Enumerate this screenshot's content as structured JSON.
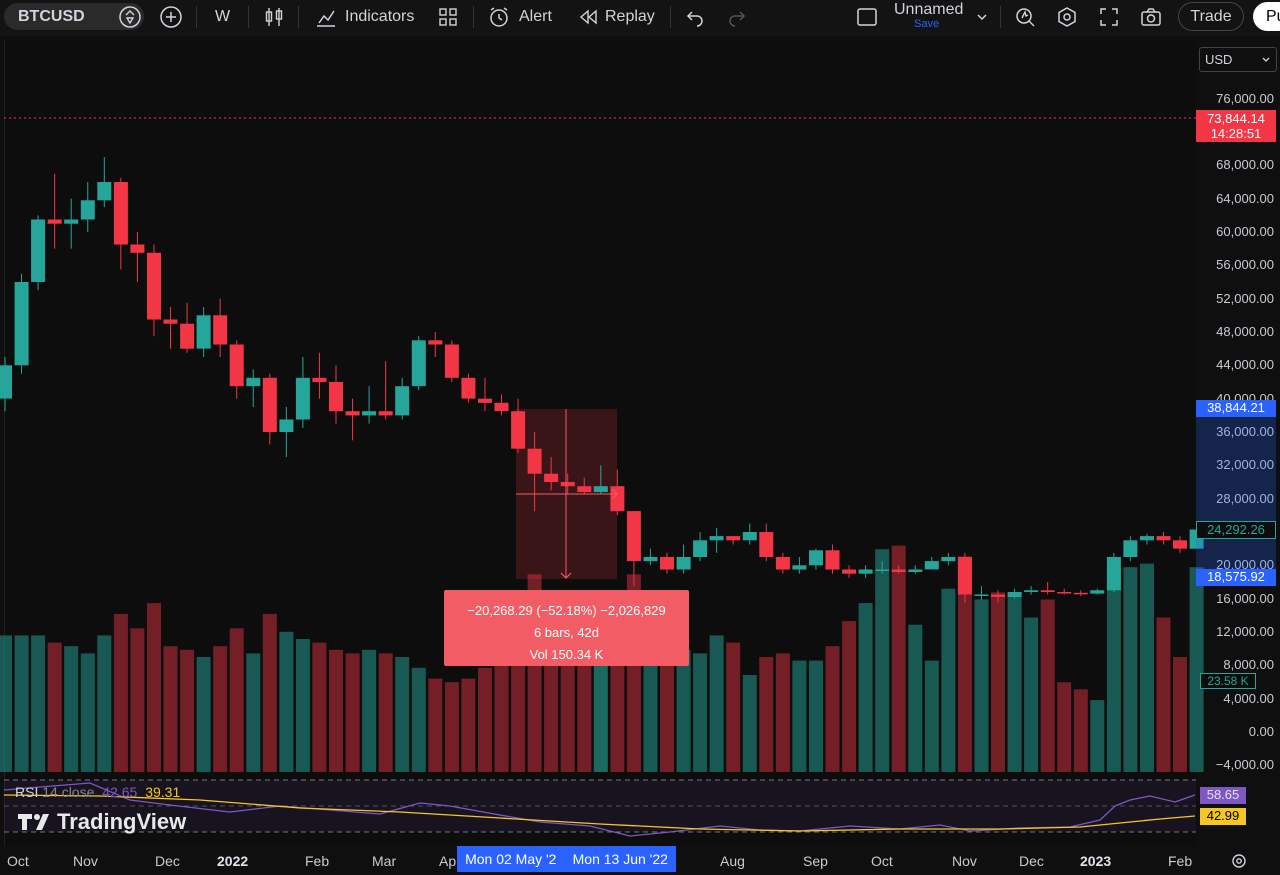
{
  "toolbar": {
    "symbol": "BTCUSD",
    "interval": "W",
    "indicators_label": "Indicators",
    "alert_label": "Alert",
    "replay_label": "Replay",
    "layout_name": "Unnamed",
    "save_label": "Save",
    "trade_label": "Trade",
    "publish_label": "Pu"
  },
  "currency": "USD",
  "price_axis": [
    "76,000.00",
    "68,000.00",
    "64,000.00",
    "60,000.00",
    "56,000.00",
    "52,000.00",
    "48,000.00",
    "44,000.00",
    "40,000.00",
    "36,000.00",
    "32,000.00",
    "28,000.00",
    "24,000.00",
    "20,000.00",
    "16,000.00",
    "12,000.00",
    "8,000.00",
    "4,000.00",
    "0.00",
    "−4,000.00"
  ],
  "tags": {
    "last_price": "73,844.14",
    "countdown": "14:28:51",
    "measure_top": "38,844.21",
    "current_close": "24,292.26",
    "measure_bottom": "18,575.92",
    "volume": "23.58 K",
    "rsi_value": "58.65",
    "rsi_ma_value": "42.99"
  },
  "time_axis": [
    "Oct",
    "Nov",
    "Dec",
    "2022",
    "Feb",
    "Mar",
    "Ap",
    "Aug",
    "Sep",
    "Oct",
    "Nov",
    "Dec",
    "2023",
    "Feb"
  ],
  "measure": {
    "line1": "−20,268.29 (−52.18%) −2,026,829",
    "line2": "6 bars, 42d",
    "line3": "Vol 150.34 K",
    "range_start": "Mon 02 May '2",
    "range_end": "Mon 13 Jun '22"
  },
  "rsi": {
    "name": "RSI",
    "params": "14 close",
    "value1": "42.65",
    "value2": "39.31"
  },
  "brand": "TradingView",
  "colors": {
    "up": "#26a69a",
    "down": "#f23645",
    "accent": "#2962ff",
    "rsi": "#7e57c2",
    "rsi_ma": "#f7c525"
  },
  "chart_data": {
    "type": "candlestick",
    "interval": "W",
    "candles": [
      [
        40000,
        44000,
        38500,
        45000
      ],
      [
        44000,
        54000,
        43000,
        55000
      ],
      [
        54000,
        61500,
        53000,
        62000
      ],
      [
        61500,
        61000,
        58000,
        67000
      ],
      [
        61000,
        61500,
        58000,
        64000
      ],
      [
        61500,
        63800,
        60000,
        66000
      ],
      [
        63800,
        66000,
        63000,
        69000
      ],
      [
        66000,
        58500,
        55500,
        66500
      ],
      [
        58500,
        57500,
        54000,
        60000
      ],
      [
        57500,
        49500,
        47500,
        58500
      ],
      [
        49500,
        49000,
        46000,
        51000
      ],
      [
        49000,
        46000,
        45500,
        51500
      ],
      [
        46000,
        50000,
        45000,
        51000
      ],
      [
        50000,
        46500,
        45000,
        52000
      ],
      [
        46500,
        41500,
        40000,
        47000
      ],
      [
        41500,
        42500,
        39000,
        43500
      ],
      [
        42500,
        36000,
        34500,
        43000
      ],
      [
        36000,
        37500,
        33000,
        39000
      ],
      [
        37500,
        42500,
        36500,
        45000
      ],
      [
        42500,
        42000,
        40000,
        45500
      ],
      [
        42000,
        38500,
        37000,
        44000
      ],
      [
        38500,
        38000,
        35000,
        40000
      ],
      [
        38000,
        38500,
        37000,
        41500
      ],
      [
        38500,
        38000,
        37500,
        44500
      ],
      [
        38000,
        41500,
        37500,
        42500
      ],
      [
        41500,
        47000,
        41000,
        47500
      ],
      [
        47000,
        46500,
        45000,
        48000
      ],
      [
        46500,
        42500,
        42000,
        47000
      ],
      [
        42500,
        40000,
        39500,
        43000
      ],
      [
        40000,
        39500,
        38500,
        42500
      ],
      [
        39500,
        38500,
        38000,
        40500
      ],
      [
        38500,
        34000,
        33500,
        40000
      ],
      [
        34000,
        31000,
        26500,
        36000
      ],
      [
        31000,
        30000,
        29000,
        33000
      ],
      [
        30000,
        29500,
        28500,
        31000
      ],
      [
        29500,
        28800,
        28500,
        30500
      ],
      [
        28800,
        29500,
        28500,
        32000
      ],
      [
        29500,
        26500,
        26000,
        31500
      ],
      [
        26500,
        20500,
        17500,
        26500
      ],
      [
        20500,
        21000,
        20000,
        22000
      ],
      [
        21000,
        19500,
        19000,
        21500
      ],
      [
        19500,
        21000,
        19000,
        22500
      ],
      [
        21000,
        23000,
        20500,
        24000
      ],
      [
        23000,
        23500,
        21500,
        24500
      ],
      [
        23500,
        23000,
        22500,
        23500
      ],
      [
        23000,
        24000,
        22500,
        25000
      ],
      [
        24000,
        21000,
        20500,
        25000
      ],
      [
        21000,
        19500,
        19000,
        21500
      ],
      [
        19500,
        20000,
        19000,
        21000
      ],
      [
        20000,
        21800,
        19500,
        22000
      ],
      [
        21800,
        19500,
        19000,
        22500
      ],
      [
        19500,
        19000,
        18500,
        20000
      ],
      [
        19000,
        19500,
        18500,
        20000
      ],
      [
        19500,
        19500,
        19000,
        20500
      ],
      [
        19500,
        19200,
        19000,
        20000
      ],
      [
        19200,
        19500,
        19000,
        20000
      ],
      [
        19500,
        20500,
        19500,
        21000
      ],
      [
        20500,
        21000,
        20000,
        21500
      ],
      [
        21000,
        16500,
        15500,
        21500
      ],
      [
        16500,
        16500,
        15800,
        17500
      ],
      [
        16500,
        16200,
        15500,
        17000
      ],
      [
        16200,
        16800,
        16000,
        17200
      ],
      [
        16800,
        17000,
        16500,
        17500
      ],
      [
        17000,
        16800,
        16500,
        18000
      ],
      [
        16800,
        16700,
        16500,
        17200
      ],
      [
        16700,
        16600,
        16300,
        17000
      ],
      [
        16600,
        17000,
        16500,
        17200
      ],
      [
        17000,
        21000,
        16800,
        21500
      ],
      [
        21000,
        23000,
        20500,
        23500
      ],
      [
        23000,
        23500,
        22500,
        23800
      ],
      [
        23500,
        23000,
        22500,
        24000
      ],
      [
        23000,
        22000,
        21500,
        23500
      ],
      [
        22000,
        24300,
        22000,
        25000
      ]
    ],
    "volume": [
      19000,
      19000,
      19000,
      18000,
      17500,
      16500,
      19000,
      22000,
      20000,
      23500,
      17500,
      17000,
      16000,
      17500,
      20000,
      16500,
      22000,
      19500,
      18500,
      18000,
      17000,
      16500,
      17000,
      16500,
      16000,
      14500,
      13000,
      12500,
      13000,
      14500,
      16000,
      18500,
      27500,
      19000,
      18500,
      16000,
      24500,
      23500,
      27500,
      20500,
      18500,
      17000,
      16500,
      19000,
      18000,
      13500,
      16000,
      16500,
      15500,
      15500,
      17500,
      21000,
      23500,
      31000,
      31500,
      20500,
      15500,
      25500,
      30000,
      24000,
      25000,
      25000,
      21500,
      24000,
      12500,
      11500,
      10000,
      28000,
      28500,
      29000,
      21500,
      16000,
      28500
    ],
    "rsi": {
      "name": "RSI",
      "length": 14,
      "source": "close",
      "value": 42.65,
      "ma": 39.31,
      "last": 58.65,
      "last_ma": 42.99
    },
    "measure_range": {
      "from": "Mon 02 May '22",
      "to": "Mon 13 Jun '22",
      "price_from": 38844.21,
      "price_to": 18575.92,
      "change": -20268.29,
      "change_pct": -52.18,
      "bars": 6,
      "days": 42,
      "volume": "150.34 K"
    },
    "ylim": [
      -4000,
      78000
    ]
  }
}
